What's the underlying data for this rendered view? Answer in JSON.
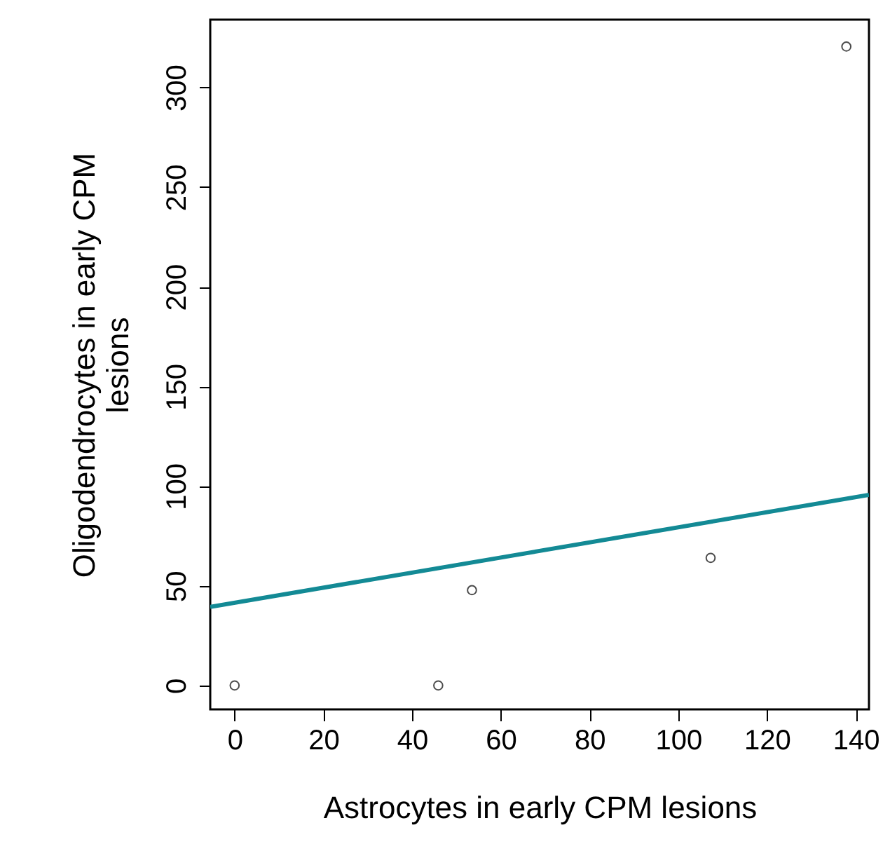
{
  "chart_data": {
    "type": "scatter",
    "xlabel": "Astrocytes in early CPM lesions",
    "ylabel": "Oligodendrocytes in early CPM lesions",
    "xlim": [
      -5.5,
      143
    ],
    "xticks": [
      0,
      20,
      40,
      60,
      80,
      100,
      120,
      140
    ],
    "ylim": [
      -12,
      334
    ],
    "yticks": [
      0,
      50,
      100,
      150,
      200,
      250,
      300
    ],
    "grid": false,
    "marker": "circle",
    "series": [
      {
        "color": "#000000",
        "x": [
          0,
          45.9,
          53.5,
          107.3,
          137.9
        ],
        "values": [
          0,
          0,
          47.8,
          64,
          320.5
        ]
      },
      {
        "type": "line",
        "marker": "none",
        "color": "#138a95",
        "x": [
          -5.5,
          143
        ],
        "values": [
          39.4,
          95.6
        ]
      }
    ]
  }
}
